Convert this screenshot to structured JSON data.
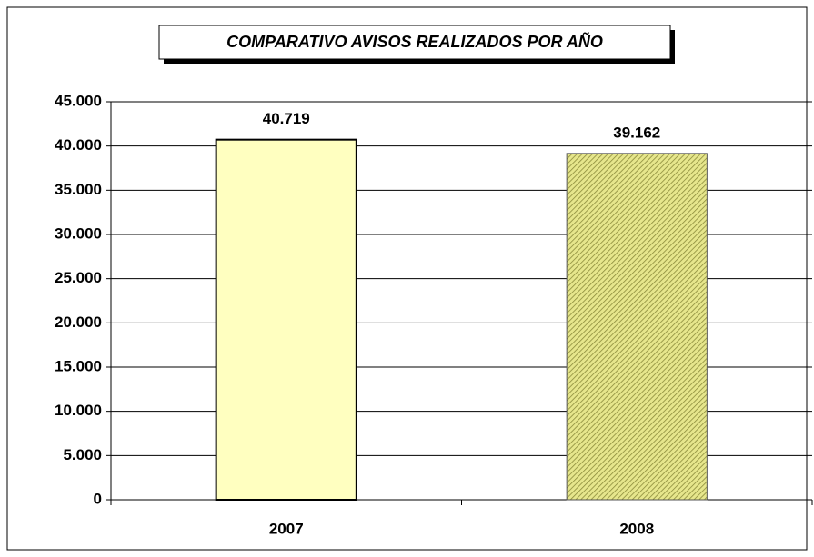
{
  "chart_data": {
    "type": "bar",
    "title": "COMPARATIVO AVISOS REALIZADOS POR AÑO",
    "categories": [
      "2007",
      "2008"
    ],
    "values": [
      40719,
      39162
    ],
    "value_labels": [
      "40.719",
      "39.162"
    ],
    "colors": [
      "#ffffc0",
      "#cccc66"
    ],
    "ylim": [
      0,
      45000
    ],
    "yticks": [
      0,
      {
        "value": 5000,
        "label": "5.000"
      },
      {
        "value": 10000,
        "label": "10.000"
      },
      {
        "value": 15000,
        "label": "15.000"
      },
      {
        "value": 20000,
        "label": "20.000"
      },
      {
        "value": 25000,
        "label": "25.000"
      },
      {
        "value": 30000,
        "label": "30.000"
      },
      {
        "value": 35000,
        "label": "35.000"
      },
      {
        "value": 40000,
        "label": "40.000"
      },
      {
        "value": 45000,
        "label": "45.000"
      }
    ],
    "grid": true
  }
}
